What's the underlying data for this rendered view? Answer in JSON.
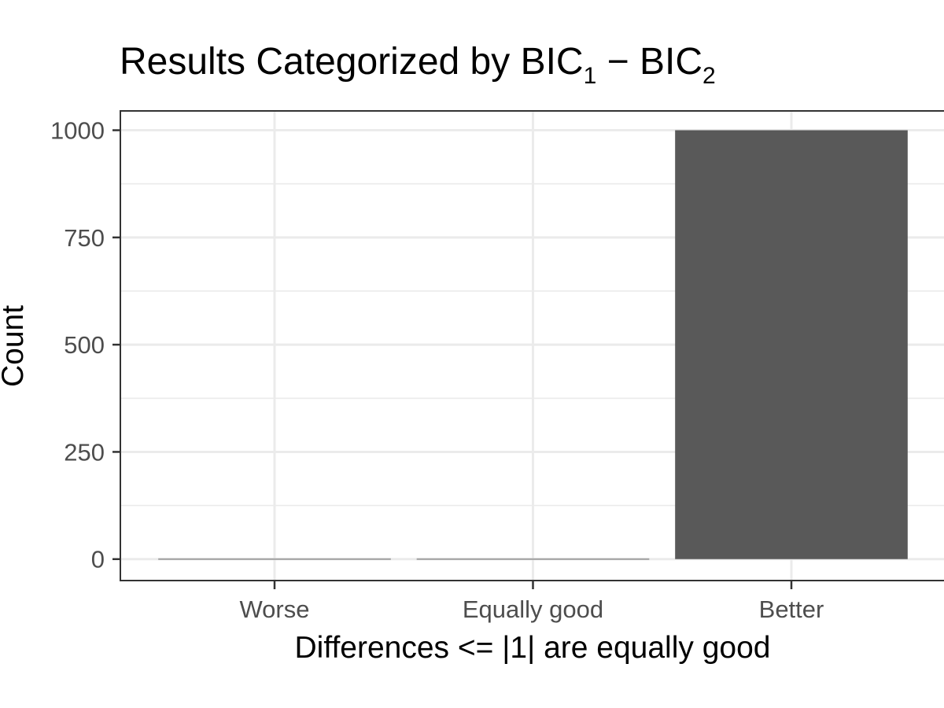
{
  "chart_data": {
    "type": "bar",
    "title": {
      "main": "Results Categorized by BIC",
      "sub1": "1",
      "minus": " − ",
      "term2": "BIC",
      "sub2": "2"
    },
    "xlabel": "Differences <= |1| are equally good",
    "ylabel": "Count",
    "categories": [
      "Worse",
      "Equally good",
      "Better"
    ],
    "values": [
      0,
      0,
      1000
    ],
    "ylim": [
      -50,
      1045
    ],
    "yticks": [
      0,
      250,
      500,
      750,
      1000
    ],
    "grid": true,
    "legend": "none",
    "colors": {
      "bar": "#595959",
      "grid": "#ebebeb",
      "panel_border": "#333333",
      "zero_bar_line": "#a0a0a0",
      "tick_text": "#4d4d4d",
      "axis_text": "#000000"
    }
  }
}
